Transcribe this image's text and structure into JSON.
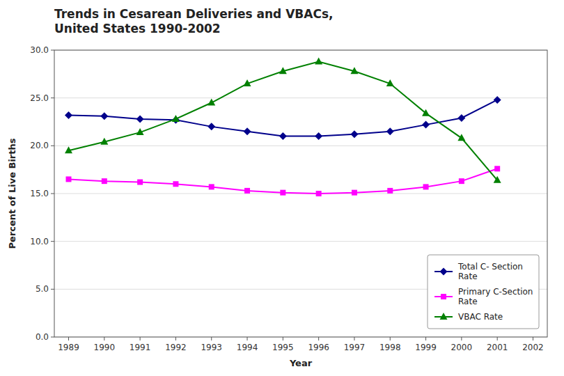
{
  "chart_data": {
    "type": "line",
    "title": "Trends in Cesarean Deliveries and VBACs,\nUnited States 1990-2002",
    "x_label": "Year",
    "y_label": "Percent of Live Births",
    "x": [
      1989,
      1990,
      1991,
      1992,
      1993,
      1994,
      1995,
      1996,
      1997,
      1998,
      1999,
      2000,
      2001
    ],
    "series": [
      {
        "name": "Total C- Section\nRate",
        "color": "#00008B",
        "marker": "diamond",
        "values": [
          23.2,
          23.1,
          22.8,
          22.7,
          22.0,
          21.5,
          21.0,
          21.0,
          21.2,
          21.5,
          22.2,
          22.9,
          24.8
        ]
      },
      {
        "name": "Primary C-Section\nRate",
        "color": "#FF00FF",
        "marker": "square",
        "values": [
          16.5,
          16.3,
          16.2,
          16.0,
          15.7,
          15.3,
          15.1,
          15.0,
          15.1,
          15.3,
          15.7,
          16.3,
          17.6
        ]
      },
      {
        "name": "VBAC Rate",
        "color": "#008000",
        "marker": "triangle",
        "values": [
          19.5,
          20.4,
          21.4,
          22.8,
          24.5,
          26.5,
          27.8,
          28.8,
          27.8,
          26.5,
          23.4,
          20.8,
          16.4
        ]
      }
    ],
    "xlim": [
      1988.6,
      2002.4
    ],
    "xticks": [
      1989,
      1990,
      1991,
      1992,
      1993,
      1994,
      1995,
      1996,
      1997,
      1998,
      1999,
      2000,
      2001,
      2002
    ],
    "ylim": [
      0.0,
      30.0
    ],
    "yticks": [
      {
        "value": 0.0,
        "label": "0.0"
      },
      {
        "value": 5.0,
        "label": "5.0"
      },
      {
        "value": 10.0,
        "label": "10.0"
      },
      {
        "value": 15.0,
        "label": "15.0"
      },
      {
        "value": 20.0,
        "label": "20.0"
      },
      {
        "value": 25.0,
        "label": "25.0"
      },
      {
        "value": 30.0,
        "label": "30.0"
      }
    ],
    "grid": true,
    "legend": "lower right"
  }
}
